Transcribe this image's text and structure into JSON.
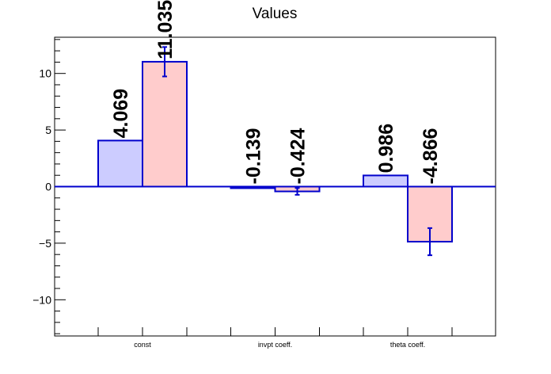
{
  "chart_data": {
    "type": "bar",
    "title": "Values",
    "categories": [
      "const",
      "invpt coeff.",
      "theta coeff."
    ],
    "series": [
      {
        "values": [
          4.069,
          -0.139,
          0.986
        ],
        "labels": [
          "4.069",
          "-0.139",
          "0.986"
        ],
        "errors": [
          null,
          null,
          null
        ],
        "fill": "#ccccff",
        "stroke": "#0000cc"
      },
      {
        "values": [
          11.035,
          -0.424,
          -4.866
        ],
        "labels": [
          "11.035",
          "-0.424",
          "-4.866"
        ],
        "errors": [
          1.3,
          0.3,
          1.2
        ],
        "fill": "#ffcccc",
        "stroke": "#0000cc"
      }
    ],
    "ylim": [
      -13.2,
      13.2
    ],
    "yticks": [
      -10,
      -5,
      0,
      5,
      10
    ],
    "ytick_labels": [
      "−10",
      "−5",
      "0",
      "5",
      "10"
    ],
    "xlabel": "",
    "ylabel": "",
    "grid": false,
    "zero_line_color": "#0000cc"
  }
}
